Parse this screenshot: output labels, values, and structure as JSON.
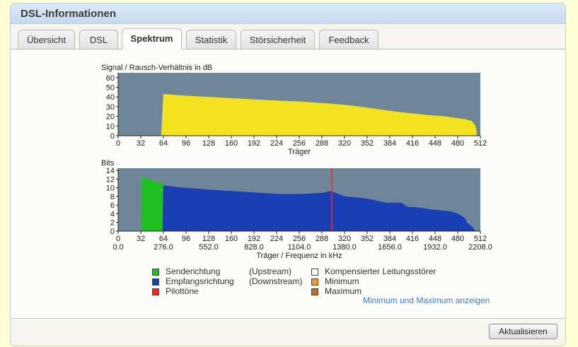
{
  "window": {
    "title": "DSL-Informationen"
  },
  "tabs": [
    {
      "label": "Übersicht"
    },
    {
      "label": "DSL"
    },
    {
      "label": "Spektrum",
      "active": true
    },
    {
      "label": "Statistik"
    },
    {
      "label": "Störsicherheit"
    },
    {
      "label": "Feedback"
    }
  ],
  "chart_data": [
    {
      "type": "area",
      "ylabel": "Signal / Rausch-Verhältnis in dB",
      "xlabel": "Träger",
      "ylim": [
        0,
        65
      ],
      "xlim": [
        0,
        512
      ],
      "yticks": [
        "0",
        "10",
        "20",
        "30",
        "40",
        "50",
        "60"
      ],
      "xticks": [
        "0",
        "32",
        "64",
        "96",
        "128",
        "160",
        "192",
        "224",
        "256",
        "288",
        "320",
        "352",
        "384",
        "416",
        "448",
        "480",
        "512"
      ],
      "colors": {
        "plot_bg": "#6f8599",
        "fill": "#f2e21f"
      },
      "series": [
        {
          "x": [
            61,
            64,
            80,
            100,
            150,
            200,
            260,
            300,
            330,
            360,
            400,
            440,
            460,
            480,
            490,
            500,
            505,
            507
          ],
          "y": [
            0,
            43,
            42,
            41,
            39,
            37,
            35,
            33,
            31,
            28,
            24,
            21,
            20,
            18,
            17,
            15,
            10,
            0
          ]
        }
      ]
    },
    {
      "type": "area",
      "ylabel": "Bits",
      "xlabel": "Träger / Frequenz in kHz",
      "ylim": [
        0,
        14.5
      ],
      "xlim": [
        0,
        512
      ],
      "yticks": [
        "0",
        "2",
        "4",
        "6",
        "8",
        "10",
        "12",
        "14"
      ],
      "xticks": [
        "0",
        "32",
        "64",
        "96",
        "128",
        "160",
        "192",
        "224",
        "256",
        "288",
        "320",
        "352",
        "384",
        "416",
        "448",
        "480",
        "512"
      ],
      "freq_ticks": [
        "0.0",
        "276.0",
        "552.0",
        "828.0",
        "1104.0",
        "1380.0",
        "1656.0",
        "1932.0",
        "2208.0"
      ],
      "pilot_tone": 302,
      "colors": {
        "plot_bg": "#6f8599",
        "upstream": "#21c021",
        "downstream": "#1a3fb5",
        "pilot": "#ff2020"
      },
      "series": [
        {
          "name": "Senderichtung",
          "x": [
            32,
            33,
            40,
            45,
            50,
            57,
            58,
            62,
            63
          ],
          "y": [
            0,
            12.5,
            12,
            11.8,
            11.5,
            11,
            11.5,
            11,
            0
          ]
        },
        {
          "name": "Empfangsrichtung",
          "x": [
            63,
            64,
            90,
            130,
            180,
            230,
            260,
            290,
            300,
            320,
            350,
            380,
            400,
            410,
            420,
            440,
            470,
            480,
            490,
            493,
            500,
            505
          ],
          "y": [
            0,
            10.5,
            10,
            9.5,
            9,
            8.5,
            8.5,
            8.8,
            9.2,
            8,
            7.5,
            6.5,
            6.5,
            5.5,
            5.5,
            5,
            4.5,
            4,
            3,
            2,
            1,
            0
          ]
        }
      ]
    }
  ],
  "legend": {
    "upstream_label": "Senderichtung",
    "upstream_dir": "(Upstream)",
    "downstream_label": "Empfangsrichtung",
    "downstream_dir": "(Downstream)",
    "pilot_label": "Pilottöne",
    "compensated_label": "Kompensierter Leitungsstörer",
    "minimum_label": "Minimum",
    "maximum_label": "Maximum",
    "colors": {
      "upstream": "#21c021",
      "downstream": "#1a3fb5",
      "pilot": "#ff2020",
      "compensated": "#ffffff",
      "minimum": "#f0a020",
      "maximum": "#c07020"
    }
  },
  "link": {
    "label": "Minimum und Maximum anzeigen"
  },
  "actions": {
    "refresh_label": "Aktualisieren"
  }
}
